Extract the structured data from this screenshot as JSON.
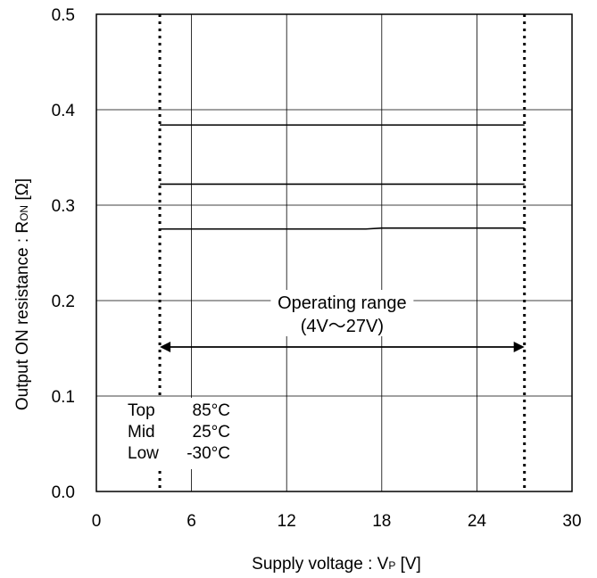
{
  "chart_data": {
    "type": "line",
    "xlabel": "Supply voltage : V",
    "xlabel_sub": "P",
    "xlabel_unit": " [V]",
    "ylabel": "Output ON resistance : R",
    "ylabel_sub": "ON",
    "ylabel_unit": " [Ω]",
    "xlim": [
      0,
      30
    ],
    "ylim": [
      0.0,
      0.5
    ],
    "xticks": [
      "0",
      "6",
      "12",
      "18",
      "24",
      "30"
    ],
    "yticks": [
      "0.0",
      "0.1",
      "0.2",
      "0.3",
      "0.4",
      "0.5"
    ],
    "grid": true,
    "series": [
      {
        "x": [
          4,
          27
        ],
        "y": [
          0.384,
          0.384
        ]
      },
      {
        "x": [
          4,
          27
        ],
        "y": [
          0.322,
          0.322
        ]
      },
      {
        "x": [
          4,
          17,
          18,
          27
        ],
        "y": [
          0.275,
          0.275,
          0.276,
          0.276
        ]
      }
    ],
    "operating_range": {
      "x_min": 4,
      "x_max": 27,
      "label": "Operating range",
      "sublabel": "(4V～27V)"
    },
    "legend": {
      "placement": "bottom-left",
      "entries": [
        {
          "name": "Top",
          "value": "85°C"
        },
        {
          "name": "Mid",
          "value": "25°C"
        },
        {
          "name": "Low",
          "value": "-30°C"
        }
      ]
    }
  }
}
